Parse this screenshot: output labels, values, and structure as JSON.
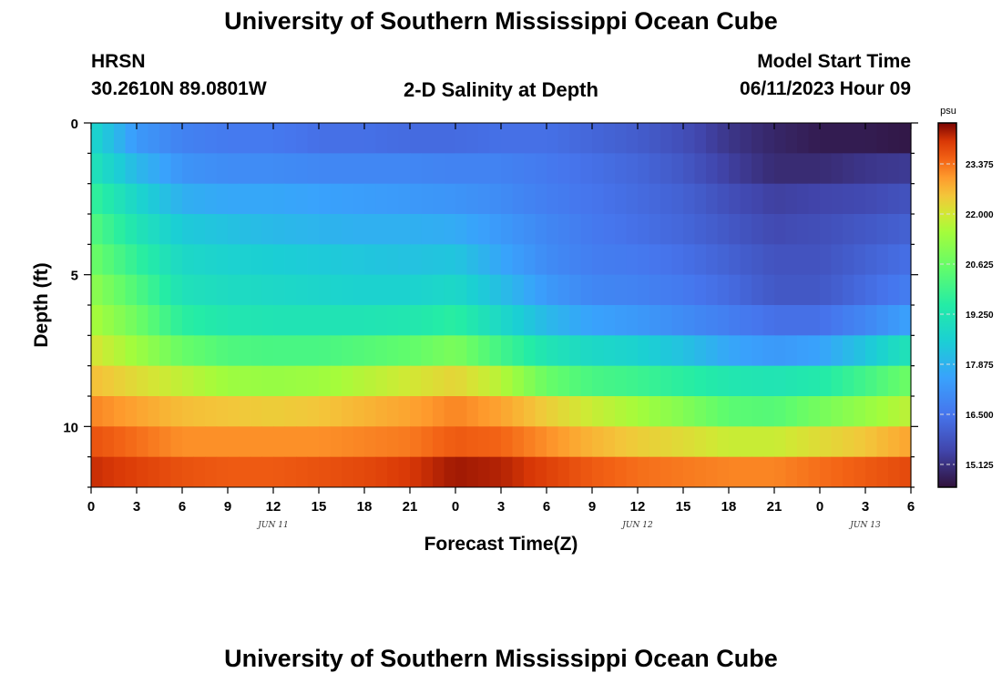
{
  "header": {
    "title_top": "University of Southern Mississippi Ocean Cube",
    "station_code": "HRSN",
    "station_coords": "30.2610N  89.0801W",
    "plot_title": "2-D Salinity at Depth",
    "model_label": "Model Start Time",
    "model_time": "06/11/2023 Hour 09",
    "title_bottom": "University of Southern Mississippi Ocean Cube"
  },
  "chart_data": {
    "type": "heatmap",
    "title": "2-D Salinity at Depth",
    "xlabel": "Forecast Time(Z)",
    "ylabel": "Depth (ft)",
    "x_tick_labels": [
      "0",
      "3",
      "6",
      "9",
      "12",
      "15",
      "18",
      "21",
      "0",
      "3",
      "6",
      "9",
      "12",
      "15",
      "18",
      "21",
      "0",
      "3",
      "6"
    ],
    "x_date_labels": [
      {
        "text": "JUN 11",
        "tick_index": 4
      },
      {
        "text": "JUN 12",
        "tick_index": 12
      },
      {
        "text": "JUN 13",
        "tick_index": 17
      }
    ],
    "y_tick_labels": [
      "0",
      "5",
      "10"
    ],
    "ylim": [
      0,
      12
    ],
    "xlim_hours": [
      0,
      54
    ],
    "colorbar": {
      "unit": "psu",
      "min": 14.5,
      "max": 24.5,
      "tick_values": [
        "23.375",
        "22.000",
        "20.625",
        "19.250",
        "17.875",
        "16.500",
        "15.125"
      ]
    },
    "time_hours": [
      0,
      3,
      6,
      9,
      12,
      15,
      18,
      21,
      24,
      27,
      30,
      33,
      36,
      39,
      42,
      45,
      48,
      51,
      54
    ],
    "depth_ft": [
      0.5,
      1.5,
      2.5,
      3.5,
      4.5,
      5.5,
      6.5,
      7.5,
      8.5,
      9.5,
      10.5,
      11.5
    ],
    "salinity_psu": [
      [
        18.8,
        17.3,
        16.8,
        16.6,
        16.6,
        16.4,
        16.4,
        16.3,
        16.3,
        16.4,
        16.4,
        16.2,
        16.0,
        15.7,
        15.2,
        14.9,
        14.7,
        14.7,
        14.6
      ],
      [
        19.2,
        18.0,
        17.2,
        17.0,
        17.0,
        16.9,
        16.9,
        16.9,
        16.8,
        16.8,
        16.6,
        16.4,
        16.2,
        15.9,
        15.4,
        15.0,
        15.0,
        15.2,
        15.3
      ],
      [
        19.8,
        18.7,
        17.8,
        17.6,
        17.6,
        17.5,
        17.4,
        17.3,
        17.2,
        17.0,
        16.7,
        16.5,
        16.3,
        16.1,
        15.7,
        15.4,
        15.5,
        15.6,
        15.8
      ],
      [
        20.3,
        19.2,
        18.4,
        18.2,
        18.0,
        17.9,
        17.8,
        17.8,
        17.7,
        17.3,
        16.9,
        16.6,
        16.4,
        16.2,
        15.9,
        15.6,
        15.7,
        15.9,
        16.1
      ],
      [
        20.7,
        19.7,
        18.8,
        18.6,
        18.5,
        18.4,
        18.3,
        18.2,
        18.3,
        17.6,
        17.0,
        16.7,
        16.6,
        16.4,
        16.1,
        15.8,
        15.8,
        16.1,
        16.4
      ],
      [
        21.2,
        20.2,
        19.1,
        18.9,
        18.8,
        18.7,
        18.6,
        18.6,
        18.8,
        18.1,
        17.3,
        16.9,
        16.8,
        16.6,
        16.3,
        15.9,
        15.9,
        16.3,
        16.7
      ],
      [
        21.6,
        20.7,
        19.6,
        19.3,
        19.2,
        19.2,
        19.2,
        19.3,
        19.6,
        18.8,
        18.0,
        17.5,
        17.3,
        17.0,
        16.7,
        16.4,
        16.4,
        16.9,
        17.5
      ],
      [
        22.1,
        21.4,
        20.6,
        20.2,
        20.1,
        20.1,
        20.3,
        20.5,
        20.9,
        20.0,
        19.2,
        18.8,
        18.6,
        18.2,
        17.6,
        17.3,
        17.5,
        18.3,
        19.2
      ],
      [
        22.6,
        22.2,
        21.8,
        21.4,
        21.3,
        21.4,
        21.7,
        22.0,
        22.3,
        21.7,
        20.6,
        20.1,
        19.9,
        19.6,
        19.3,
        19.2,
        19.4,
        20.0,
        20.7
      ],
      [
        23.2,
        22.9,
        22.6,
        22.5,
        22.4,
        22.5,
        22.7,
        22.9,
        23.2,
        22.9,
        22.4,
        21.9,
        21.5,
        21.0,
        20.4,
        20.3,
        20.8,
        21.3,
        21.8
      ],
      [
        23.7,
        23.4,
        23.1,
        23.1,
        23.1,
        23.1,
        23.2,
        23.3,
        23.6,
        23.5,
        23.1,
        22.7,
        22.4,
        22.2,
        21.9,
        21.9,
        22.2,
        22.5,
        22.9
      ],
      [
        24.1,
        23.9,
        23.7,
        23.6,
        23.6,
        23.7,
        23.8,
        24.0,
        24.3,
        24.2,
        23.9,
        23.6,
        23.4,
        23.3,
        23.2,
        23.2,
        23.4,
        23.6,
        23.8
      ]
    ]
  }
}
